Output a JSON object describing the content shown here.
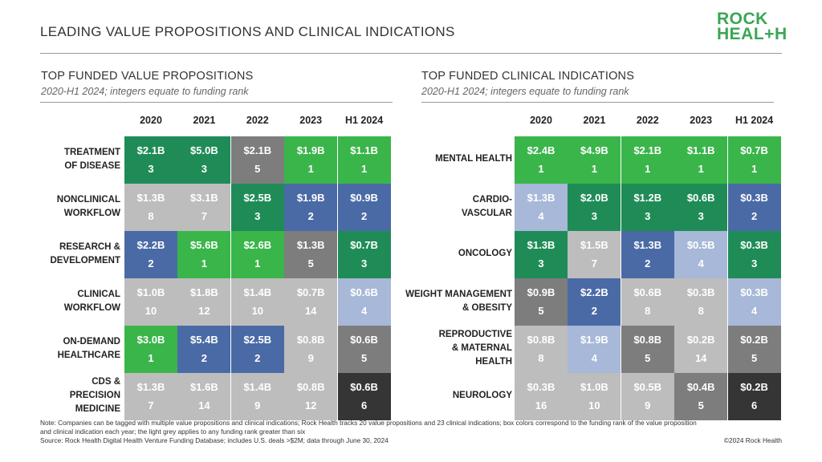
{
  "header": {
    "title": "LEADING VALUE PROPOSITIONS AND CLINICAL INDICATIONS"
  },
  "logo": {
    "line1": "ROCK",
    "line2_left": "HEAL",
    "line2_plus": "+",
    "line2_right": "H"
  },
  "colors": {
    "rank1": "#3ab54a",
    "rank2": "#4a6aa5",
    "rank3": "#1f8c57",
    "rank4": "#a7b8d8",
    "rank5": "#7d7d7d",
    "rank6": "#353535",
    "rank_gt6": "#bdbdbd"
  },
  "chart_data": [
    {
      "type": "table",
      "title": "TOP FUNDED VALUE PROPOSITIONS",
      "subtitle": "2020-H1 2024; integers equate to funding rank",
      "columns": [
        "2020",
        "2021",
        "2022",
        "2023",
        "H1 2024"
      ],
      "rows": [
        {
          "label": [
            "TREATMENT",
            "OF DISEASE"
          ],
          "cells": [
            {
              "amount": "$2.1B",
              "rank": 3
            },
            {
              "amount": "$5.0B",
              "rank": 3
            },
            {
              "amount": "$2.1B",
              "rank": 5
            },
            {
              "amount": "$1.9B",
              "rank": 1
            },
            {
              "amount": "$1.1B",
              "rank": 1
            }
          ]
        },
        {
          "label": [
            "NONCLINICAL",
            "WORKFLOW"
          ],
          "cells": [
            {
              "amount": "$1.3B",
              "rank": 8
            },
            {
              "amount": "$3.1B",
              "rank": 7
            },
            {
              "amount": "$2.5B",
              "rank": 3
            },
            {
              "amount": "$1.9B",
              "rank": 2
            },
            {
              "amount": "$0.9B",
              "rank": 2
            }
          ]
        },
        {
          "label": [
            "RESEARCH &",
            "DEVELOPMENT"
          ],
          "cells": [
            {
              "amount": "$2.2B",
              "rank": 2
            },
            {
              "amount": "$5.6B",
              "rank": 1
            },
            {
              "amount": "$2.6B",
              "rank": 1
            },
            {
              "amount": "$1.3B",
              "rank": 5
            },
            {
              "amount": "$0.7B",
              "rank": 3
            }
          ]
        },
        {
          "label": [
            "CLINICAL",
            "WORKFLOW"
          ],
          "cells": [
            {
              "amount": "$1.0B",
              "rank": 10
            },
            {
              "amount": "$1.8B",
              "rank": 12
            },
            {
              "amount": "$1.4B",
              "rank": 10
            },
            {
              "amount": "$0.7B",
              "rank": 14
            },
            {
              "amount": "$0.6B",
              "rank": 4
            }
          ]
        },
        {
          "label": [
            "ON-DEMAND",
            "HEALTHCARE"
          ],
          "cells": [
            {
              "amount": "$3.0B",
              "rank": 1
            },
            {
              "amount": "$5.4B",
              "rank": 2
            },
            {
              "amount": "$2.5B",
              "rank": 2
            },
            {
              "amount": "$0.8B",
              "rank": 9
            },
            {
              "amount": "$0.6B",
              "rank": 5
            }
          ]
        },
        {
          "label": [
            "CDS &",
            "PRECISION",
            "MEDICINE"
          ],
          "cells": [
            {
              "amount": "$1.3B",
              "rank": 7
            },
            {
              "amount": "$1.6B",
              "rank": 14
            },
            {
              "amount": "$1.4B",
              "rank": 9
            },
            {
              "amount": "$0.8B",
              "rank": 12
            },
            {
              "amount": "$0.6B",
              "rank": 6
            }
          ]
        }
      ]
    },
    {
      "type": "table",
      "title": "TOP FUNDED CLINICAL INDICATIONS",
      "subtitle": "2020-H1 2024; integers equate to funding rank",
      "columns": [
        "2020",
        "2021",
        "2022",
        "2023",
        "H1 2024"
      ],
      "rows": [
        {
          "label": [
            "MENTAL HEALTH"
          ],
          "cells": [
            {
              "amount": "$2.4B",
              "rank": 1
            },
            {
              "amount": "$4.9B",
              "rank": 1
            },
            {
              "amount": "$2.1B",
              "rank": 1
            },
            {
              "amount": "$1.1B",
              "rank": 1
            },
            {
              "amount": "$0.7B",
              "rank": 1
            }
          ]
        },
        {
          "label": [
            "CARDIO-",
            "VASCULAR"
          ],
          "cells": [
            {
              "amount": "$1.3B",
              "rank": 4
            },
            {
              "amount": "$2.0B",
              "rank": 3
            },
            {
              "amount": "$1.2B",
              "rank": 3
            },
            {
              "amount": "$0.6B",
              "rank": 3
            },
            {
              "amount": "$0.3B",
              "rank": 2
            }
          ]
        },
        {
          "label": [
            "ONCOLOGY"
          ],
          "cells": [
            {
              "amount": "$1.3B",
              "rank": 3
            },
            {
              "amount": "$1.5B",
              "rank": 7
            },
            {
              "amount": "$1.3B",
              "rank": 2
            },
            {
              "amount": "$0.5B",
              "rank": 4
            },
            {
              "amount": "$0.3B",
              "rank": 3
            }
          ]
        },
        {
          "label": [
            "WEIGHT MANAGEMENT",
            "& OBESITY"
          ],
          "cells": [
            {
              "amount": "$0.9B",
              "rank": 5
            },
            {
              "amount": "$2.2B",
              "rank": 2
            },
            {
              "amount": "$0.6B",
              "rank": 8
            },
            {
              "amount": "$0.3B",
              "rank": 8
            },
            {
              "amount": "$0.3B",
              "rank": 4
            }
          ]
        },
        {
          "label": [
            "REPRODUCTIVE",
            "& MATERNAL",
            "HEALTH"
          ],
          "cells": [
            {
              "amount": "$0.8B",
              "rank": 8
            },
            {
              "amount": "$1.9B",
              "rank": 4
            },
            {
              "amount": "$0.8B",
              "rank": 5
            },
            {
              "amount": "$0.2B",
              "rank": 14
            },
            {
              "amount": "$0.2B",
              "rank": 5
            }
          ]
        },
        {
          "label": [
            "NEUROLOGY"
          ],
          "cells": [
            {
              "amount": "$0.3B",
              "rank": 16
            },
            {
              "amount": "$1.0B",
              "rank": 10
            },
            {
              "amount": "$0.5B",
              "rank": 9
            },
            {
              "amount": "$0.4B",
              "rank": 5
            },
            {
              "amount": "$0.2B",
              "rank": 6
            }
          ]
        }
      ]
    }
  ],
  "footnote": {
    "line1": "Note: Companies can be tagged with multiple value propositions and clinical indications; Rock Health tracks 20 value propositions and 23 clinical indications; box colors correspond to the funding rank of the value proposition",
    "line2": "and clinical indication each year; the light grey applies to any funding rank greater than six",
    "line3": "Source: Rock Health Digital Health Venture Funding Database; includes U.S. deals >$2M; data through June 30, 2024"
  },
  "copyright": "©2024 Rock Health"
}
